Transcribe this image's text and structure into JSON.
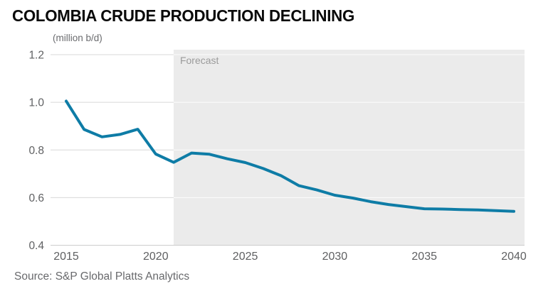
{
  "header": {
    "title": "COLOMBIA CRUDE PRODUCTION DECLINING",
    "subtitle": "(million b/d)"
  },
  "footer": {
    "source": "Source: S&P Global Platts Analytics"
  },
  "chart_data": {
    "type": "line",
    "title": "COLOMBIA CRUDE PRODUCTION DECLINING",
    "ylabel": "(million b/d)",
    "xlabel": "",
    "x": [
      2015,
      2016,
      2017,
      2018,
      2019,
      2020,
      2021,
      2022,
      2023,
      2024,
      2025,
      2026,
      2027,
      2028,
      2029,
      2030,
      2031,
      2032,
      2033,
      2034,
      2035,
      2036,
      2037,
      2038,
      2039,
      2040
    ],
    "series": [
      {
        "name": "Colombia crude production",
        "color": "#0e7ca6",
        "values": [
          1.005,
          0.886,
          0.855,
          0.865,
          0.887,
          0.783,
          0.748,
          0.787,
          0.782,
          0.763,
          0.747,
          0.722,
          0.692,
          0.65,
          0.632,
          0.61,
          0.598,
          0.583,
          0.571,
          0.562,
          0.553,
          0.552,
          0.55,
          0.548,
          0.545,
          0.542
        ]
      }
    ],
    "x_axis": {
      "min": 2015,
      "max": 2040,
      "ticks": [
        2015,
        2020,
        2025,
        2030,
        2035,
        2040
      ],
      "tick_labels": [
        "2015",
        "2020",
        "2025",
        "2030",
        "2035",
        "2040"
      ]
    },
    "y_axis": {
      "min": 0.4,
      "max": 1.2,
      "ticks": [
        1.2,
        1.0,
        0.8,
        0.6,
        0.4
      ],
      "tick_labels": [
        "1.2",
        "1.0",
        "0.8",
        "0.6",
        "0.4"
      ]
    },
    "forecast": {
      "label": "Forecast",
      "start_x": 2021
    },
    "grid": true,
    "legend": "none",
    "colors": {
      "line": "#0e7ca6",
      "forecast_band": "#ebebeb",
      "gridline": "#d8d8d8",
      "gridline_on_band": "#ffffff",
      "axis_line": "#cccccc",
      "tick_text": "#5f6062",
      "forecast_text": "#9b9b9b"
    }
  }
}
